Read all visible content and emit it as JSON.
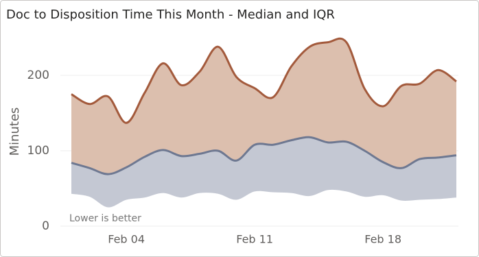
{
  "chart_data": {
    "type": "band",
    "title": "Doc to Disposition Time This Month - Median and IQR",
    "y_label": "Minutes",
    "annotation": "Lower is better",
    "categories": [
      null,
      null,
      null,
      "Feb 04",
      null,
      null,
      null,
      null,
      null,
      null,
      "Feb 11",
      null,
      null,
      null,
      null,
      null,
      null,
      "Feb 18",
      null,
      null,
      null,
      null
    ],
    "series": [
      {
        "values": [
          43,
          39,
          25,
          35,
          38,
          44,
          38,
          44,
          43,
          35,
          46,
          45,
          44,
          40,
          48,
          46,
          39,
          41,
          34,
          35,
          36,
          38
        ]
      },
      {
        "color": "#6e7891",
        "area_color": "#c4c8d3",
        "values": [
          84,
          77,
          69,
          78,
          92,
          101,
          93,
          96,
          100,
          87,
          108,
          108,
          114,
          118,
          111,
          112,
          100,
          85,
          77,
          89,
          91,
          94
        ]
      },
      {
        "color": "#a35a3c",
        "area_color": "#dcbfae",
        "values": [
          175,
          162,
          172,
          137,
          177,
          216,
          187,
          205,
          238,
          198,
          183,
          171,
          212,
          238,
          244,
          244,
          182,
          159,
          186,
          189,
          207,
          192
        ]
      }
    ],
    "ylim": [
      0,
      250
    ],
    "yticks": [
      0,
      100,
      200
    ],
    "grid": true
  }
}
